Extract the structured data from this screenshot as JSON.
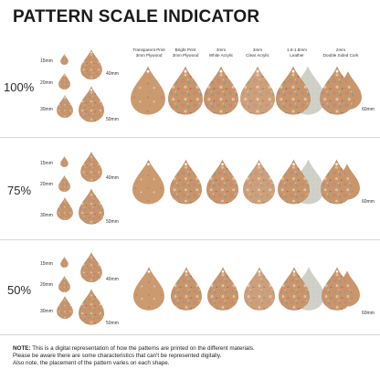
{
  "title": "PATTERN SCALE INDICATOR",
  "columns": [
    {
      "line1": "Transparent Print",
      "line2": "3mm Plywood"
    },
    {
      "line1": "Bright Print",
      "line2": "3mm Plywood"
    },
    {
      "line1": "3mm",
      "line2": "White Acrylic"
    },
    {
      "line1": "3mm",
      "line2": "Clear Acrylic"
    },
    {
      "line1": "1.6-1.8mm",
      "line2": "Leather"
    },
    {
      "line1": "2mm",
      "line2": "Double Sided Cork"
    }
  ],
  "rows": [
    {
      "scale": "100%"
    },
    {
      "scale": "75%"
    },
    {
      "scale": "50%"
    }
  ],
  "size_labels": {
    "s15": "15mm",
    "s20": "20mm",
    "s30": "30mm",
    "s40": "40mm",
    "s50": "50mm",
    "s60": "60mm"
  },
  "note": {
    "prefix": "NOTE:",
    "line1": " This is a digital representation of how the patterns are printed on the different materials.",
    "line2": "Please be aware there are some characteristics that can't be represented digitally.",
    "line3": "Also note, the placement of the pattern varies on each shape."
  },
  "colors": {
    "cork": "#c9956a",
    "cork_dark": "#b07d55",
    "leather": "#cfd1c9",
    "flower_rose": "#b9736b",
    "flower_teal": "#7c9d93",
    "flower_cream": "#efe5d2"
  }
}
